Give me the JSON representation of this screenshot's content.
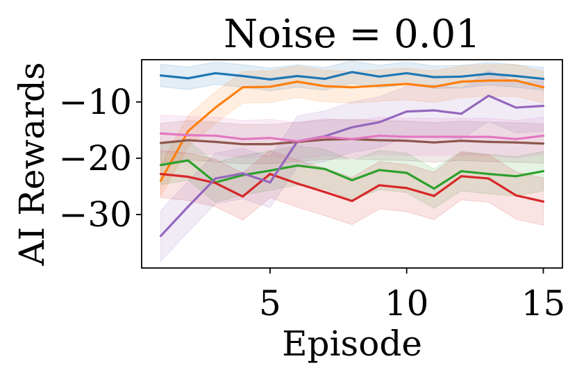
{
  "chart_data": {
    "type": "line",
    "title": "Noise = 0.01",
    "xlabel": "Episode",
    "ylabel": "AI Rewards",
    "xlim": [
      0.3,
      15.7
    ],
    "ylim": [
      -39.5,
      -2.5
    ],
    "xticks": [
      5,
      10,
      15
    ],
    "xtick_labels": [
      "5",
      "10",
      "15"
    ],
    "yticks": [
      -10,
      -20,
      -30
    ],
    "ytick_labels": [
      "−10",
      "−20",
      "−30"
    ],
    "grid": false,
    "legend": "none",
    "x": [
      1,
      2,
      3,
      4,
      5,
      6,
      7,
      8,
      9,
      10,
      11,
      12,
      13,
      14,
      15
    ],
    "series": [
      {
        "color": "#1f77b4",
        "values": [
          -5.3,
          -5.8,
          -4.9,
          -5.4,
          -6.0,
          -5.4,
          -5.9,
          -4.7,
          -5.5,
          -4.9,
          -5.6,
          -5.5,
          -5.0,
          -5.4,
          -5.9
        ],
        "band": 2.0
      },
      {
        "color": "#ff7f0e",
        "values": [
          -24.0,
          -15.2,
          -11.0,
          -7.4,
          -7.3,
          -6.4,
          -7.2,
          -7.4,
          -7.1,
          -6.8,
          -7.3,
          -6.4,
          -6.2,
          -6.2,
          -7.4
        ],
        "band": 2.8
      },
      {
        "color": "#2ca02c",
        "values": [
          -21.2,
          -20.4,
          -24.3,
          -23.0,
          -22.2,
          -21.3,
          -21.9,
          -23.9,
          -22.1,
          -22.6,
          -25.4,
          -22.3,
          -22.8,
          -23.2,
          -22.3
        ],
        "band": 3.5
      },
      {
        "color": "#d62728",
        "values": [
          -22.8,
          -23.3,
          -24.4,
          -26.8,
          -22.8,
          -24.5,
          -26.0,
          -27.6,
          -24.8,
          -25.3,
          -26.7,
          -23.2,
          -23.6,
          -26.6,
          -27.7
        ],
        "band": 4.2
      },
      {
        "color": "#9467bd",
        "values": [
          -33.8,
          -28.6,
          -23.6,
          -22.7,
          -24.3,
          -17.0,
          -16.1,
          -14.5,
          -13.6,
          -11.7,
          -11.5,
          -12.1,
          -8.9,
          -11.0,
          -10.7
        ],
        "band": 4.5
      },
      {
        "color": "#8c564b",
        "values": [
          -17.3,
          -16.8,
          -17.1,
          -17.5,
          -17.5,
          -17.1,
          -16.7,
          -16.6,
          -16.8,
          -16.9,
          -17.2,
          -16.9,
          -17.1,
          -17.2,
          -17.4
        ],
        "band": 3.5
      },
      {
        "color": "#e377c2",
        "values": [
          -15.6,
          -15.9,
          -16.0,
          -16.6,
          -16.4,
          -17.0,
          -16.2,
          -16.6,
          -16.0,
          -16.2,
          -16.2,
          -16.2,
          -16.2,
          -16.6,
          -16.0
        ],
        "band": 3.3
      }
    ]
  }
}
